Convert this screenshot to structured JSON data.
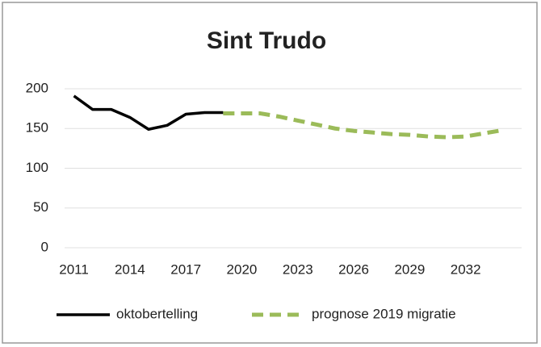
{
  "chart_data": {
    "type": "line",
    "title": "Sint Trudo",
    "x": [
      2011,
      2012,
      2013,
      2014,
      2015,
      2016,
      2017,
      2018,
      2019,
      2020,
      2021,
      2022,
      2023,
      2024,
      2025,
      2026,
      2027,
      2028,
      2029,
      2030,
      2031,
      2032,
      2033,
      2034
    ],
    "series": [
      {
        "name": "oktobertelling",
        "color": "#000000",
        "dashed": false,
        "values": [
          191,
          174,
          174,
          164,
          149,
          154,
          168,
          170,
          170,
          null,
          null,
          null,
          null,
          null,
          null,
          null,
          null,
          null,
          null,
          null,
          null,
          null,
          null,
          null
        ]
      },
      {
        "name": "prognose 2019 migratie",
        "color": "#9bbb59",
        "dashed": true,
        "values": [
          null,
          null,
          null,
          null,
          null,
          null,
          null,
          null,
          169,
          169,
          169,
          165,
          160,
          155,
          150,
          147,
          145,
          143,
          142,
          140,
          139,
          140,
          144,
          148
        ]
      }
    ],
    "xlim": [
      2010.5,
      2035
    ],
    "xticks": [
      2011,
      2014,
      2017,
      2020,
      2023,
      2026,
      2029,
      2032
    ],
    "ylim": [
      0,
      200
    ],
    "yticks": [
      0,
      50,
      100,
      150,
      200
    ],
    "grid": true,
    "legend": "bottom"
  }
}
